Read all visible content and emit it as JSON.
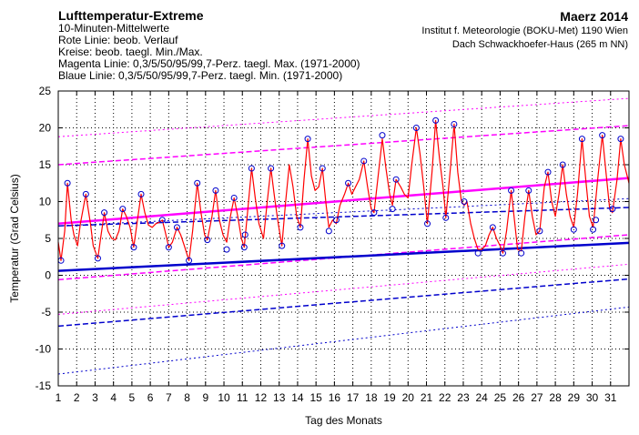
{
  "header": {
    "title": "Lufttemperatur-Extreme",
    "line1": "10-Minuten-Mittelwerte",
    "line2": "Rote Linie: beob. Verlauf",
    "line3": "Kreise: beob. taegl. Min./Max.",
    "line4": "Magenta Linie: 0,3/5/50/95/99,7-Perz. taegl. Max. (1971-2000)",
    "line5": "Blaue Linie: 0,3/5/50/95/99,7-Perz. taegl. Min. (1971-2000)",
    "month": "Maerz 2014",
    "institute": "Institut f. Meteorologie (BOKU-Met) 1190 Wien",
    "station": "Dach Schwackhoefer-Haus (265 m NN)"
  },
  "chart_data": {
    "type": "line",
    "xlabel": "Tag des Monats",
    "ylabel": "Temperatur (Grad Celsius)",
    "xlim": [
      1,
      32
    ],
    "ylim": [
      -15,
      25
    ],
    "xticks": [
      "1",
      "2",
      "3",
      "4",
      "5",
      "6",
      "7",
      "8",
      "9",
      "10",
      "11",
      "12",
      "13",
      "14",
      "15",
      "16",
      "17",
      "18",
      "19",
      "20",
      "21",
      "22",
      "23",
      "24",
      "25",
      "26",
      "27",
      "28",
      "29",
      "30",
      "31"
    ],
    "yticks": [
      25,
      20,
      15,
      10,
      5,
      0,
      -5,
      -10,
      -15
    ],
    "grid": true,
    "colors": {
      "observed": "#ff0000",
      "max_percentiles": "#ff00ff",
      "min_percentiles": "#0000cc",
      "extremes_circles": "#0000cc"
    },
    "observed_series": {
      "name": "",
      "points": [
        [
          1.0,
          4.5
        ],
        [
          1.15,
          2.0
        ],
        [
          1.35,
          6.0
        ],
        [
          1.5,
          12.5
        ],
        [
          1.7,
          7.5
        ],
        [
          1.85,
          5.5
        ],
        [
          2.05,
          4.0
        ],
        [
          2.2,
          7.0
        ],
        [
          2.5,
          11.0
        ],
        [
          2.75,
          7.0
        ],
        [
          2.9,
          4.0
        ],
        [
          3.15,
          2.3
        ],
        [
          3.3,
          5.0
        ],
        [
          3.5,
          8.5
        ],
        [
          3.7,
          6.0
        ],
        [
          3.9,
          5.0
        ],
        [
          4.1,
          4.8
        ],
        [
          4.3,
          6.0
        ],
        [
          4.5,
          9.0
        ],
        [
          4.7,
          8.0
        ],
        [
          4.9,
          6.5
        ],
        [
          5.1,
          3.8
        ],
        [
          5.3,
          7.5
        ],
        [
          5.5,
          11.0
        ],
        [
          5.7,
          8.5
        ],
        [
          5.9,
          6.8
        ],
        [
          6.1,
          6.5
        ],
        [
          6.3,
          7.0
        ],
        [
          6.5,
          7.2
        ],
        [
          6.65,
          7.5
        ],
        [
          6.8,
          6.0
        ],
        [
          7.0,
          3.8
        ],
        [
          7.2,
          4.5
        ],
        [
          7.45,
          6.5
        ],
        [
          7.65,
          5.5
        ],
        [
          7.85,
          4.0
        ],
        [
          8.1,
          2.0
        ],
        [
          8.3,
          6.0
        ],
        [
          8.55,
          12.5
        ],
        [
          8.75,
          8.5
        ],
        [
          8.95,
          5.5
        ],
        [
          9.1,
          4.8
        ],
        [
          9.35,
          8.0
        ],
        [
          9.55,
          11.5
        ],
        [
          9.75,
          7.5
        ],
        [
          9.95,
          5.5
        ],
        [
          10.15,
          4.5
        ],
        [
          10.35,
          8.0
        ],
        [
          10.55,
          10.5
        ],
        [
          10.75,
          8.0
        ],
        [
          10.95,
          5.0
        ],
        [
          11.1,
          3.8
        ],
        [
          11.3,
          9.0
        ],
        [
          11.5,
          14.5
        ],
        [
          11.7,
          10.5
        ],
        [
          11.9,
          7.0
        ],
        [
          12.15,
          5.0
        ],
        [
          12.35,
          10.0
        ],
        [
          12.55,
          14.5
        ],
        [
          12.75,
          10.5
        ],
        [
          12.95,
          7.0
        ],
        [
          13.15,
          4.0
        ],
        [
          13.35,
          10.0
        ],
        [
          13.55,
          15.0
        ],
        [
          13.75,
          12.0
        ],
        [
          13.95,
          8.0
        ],
        [
          14.15,
          6.5
        ],
        [
          14.35,
          13.0
        ],
        [
          14.55,
          18.5
        ],
        [
          14.75,
          13.5
        ],
        [
          14.95,
          11.5
        ],
        [
          15.15,
          12.0
        ],
        [
          15.35,
          14.5
        ],
        [
          15.55,
          9.5
        ],
        [
          15.7,
          6.5
        ],
        [
          15.9,
          7.5
        ],
        [
          16.1,
          7.0
        ],
        [
          16.3,
          9.5
        ],
        [
          16.55,
          11.0
        ],
        [
          16.75,
          12.5
        ],
        [
          16.95,
          11.0
        ],
        [
          17.15,
          12.0
        ],
        [
          17.35,
          13.0
        ],
        [
          17.6,
          15.5
        ],
        [
          17.8,
          12.0
        ],
        [
          18.0,
          9.0
        ],
        [
          18.15,
          8.5
        ],
        [
          18.4,
          14.0
        ],
        [
          18.6,
          18.5
        ],
        [
          18.8,
          14.5
        ],
        [
          19.0,
          11.0
        ],
        [
          19.15,
          9.5
        ],
        [
          19.35,
          13.0
        ],
        [
          19.6,
          12.0
        ],
        [
          19.8,
          11.0
        ],
        [
          20.0,
          10.5
        ],
        [
          20.2,
          15.0
        ],
        [
          20.45,
          20.0
        ],
        [
          20.65,
          16.5
        ],
        [
          20.85,
          12.0
        ],
        [
          21.05,
          7.0
        ],
        [
          21.3,
          14.0
        ],
        [
          21.5,
          21.0
        ],
        [
          21.7,
          16.0
        ],
        [
          21.9,
          12.0
        ],
        [
          22.05,
          7.8
        ],
        [
          22.3,
          14.5
        ],
        [
          22.5,
          20.5
        ],
        [
          22.7,
          14.0
        ],
        [
          22.9,
          10.0
        ],
        [
          23.05,
          9.5
        ],
        [
          23.2,
          10.0
        ],
        [
          23.4,
          7.0
        ],
        [
          23.6,
          5.0
        ],
        [
          23.8,
          3.5
        ],
        [
          24.0,
          3.5
        ],
        [
          24.2,
          4.0
        ],
        [
          24.4,
          5.5
        ],
        [
          24.6,
          6.5
        ],
        [
          24.8,
          5.0
        ],
        [
          25.0,
          4.0
        ],
        [
          25.15,
          3.0
        ],
        [
          25.35,
          6.0
        ],
        [
          25.6,
          11.5
        ],
        [
          25.8,
          7.0
        ],
        [
          25.95,
          3.5
        ],
        [
          26.15,
          3.3
        ],
        [
          26.35,
          8.0
        ],
        [
          26.55,
          11.5
        ],
        [
          26.75,
          8.0
        ],
        [
          26.95,
          5.5
        ],
        [
          27.15,
          6.0
        ],
        [
          27.4,
          12.0
        ],
        [
          27.6,
          14.0
        ],
        [
          27.8,
          10.0
        ],
        [
          28.0,
          8.0
        ],
        [
          28.2,
          11.0
        ],
        [
          28.4,
          15.0
        ],
        [
          28.6,
          11.0
        ],
        [
          28.8,
          8.0
        ],
        [
          29.0,
          6.5
        ],
        [
          29.2,
          11.0
        ],
        [
          29.45,
          18.5
        ],
        [
          29.65,
          13.0
        ],
        [
          29.85,
          8.0
        ],
        [
          30.05,
          6.5
        ],
        [
          30.3,
          13.0
        ],
        [
          30.55,
          19.0
        ],
        [
          30.75,
          14.0
        ],
        [
          30.95,
          9.0
        ],
        [
          31.1,
          8.5
        ],
        [
          31.35,
          13.0
        ],
        [
          31.55,
          18.5
        ],
        [
          31.75,
          15.0
        ],
        [
          31.95,
          13.0
        ],
        [
          32.0,
          12.5
        ]
      ]
    },
    "daily_extremes": [
      [
        1.15,
        2.0
      ],
      [
        1.5,
        12.5
      ],
      [
        2.5,
        11.0
      ],
      [
        3.15,
        2.3
      ],
      [
        3.5,
        8.5
      ],
      [
        4.5,
        9.0
      ],
      [
        5.1,
        3.8
      ],
      [
        5.5,
        11.0
      ],
      [
        6.65,
        7.5
      ],
      [
        7.0,
        3.8
      ],
      [
        7.45,
        6.5
      ],
      [
        8.1,
        2.0
      ],
      [
        8.55,
        12.5
      ],
      [
        9.1,
        4.8
      ],
      [
        9.55,
        11.5
      ],
      [
        10.15,
        3.5
      ],
      [
        10.55,
        10.5
      ],
      [
        11.1,
        3.8
      ],
      [
        11.15,
        5.5
      ],
      [
        11.5,
        14.5
      ],
      [
        12.55,
        14.5
      ],
      [
        13.15,
        4.0
      ],
      [
        14.15,
        6.5
      ],
      [
        14.55,
        18.5
      ],
      [
        15.35,
        14.5
      ],
      [
        15.7,
        6.0
      ],
      [
        16.1,
        7.5
      ],
      [
        16.75,
        12.5
      ],
      [
        17.6,
        15.5
      ],
      [
        18.15,
        8.5
      ],
      [
        18.6,
        19.0
      ],
      [
        19.15,
        9.0
      ],
      [
        19.35,
        13.0
      ],
      [
        20.45,
        20.0
      ],
      [
        21.05,
        7.0
      ],
      [
        21.5,
        21.0
      ],
      [
        22.05,
        7.8
      ],
      [
        22.5,
        20.5
      ],
      [
        23.05,
        10.0
      ],
      [
        23.8,
        3.0
      ],
      [
        24.6,
        6.5
      ],
      [
        25.15,
        3.0
      ],
      [
        25.6,
        11.5
      ],
      [
        26.15,
        3.0
      ],
      [
        26.55,
        11.5
      ],
      [
        27.15,
        6.0
      ],
      [
        27.6,
        14.0
      ],
      [
        28.4,
        15.0
      ],
      [
        29.0,
        6.2
      ],
      [
        29.45,
        18.5
      ],
      [
        30.05,
        6.2
      ],
      [
        30.2,
        7.5
      ],
      [
        30.55,
        19.0
      ],
      [
        31.1,
        9.0
      ],
      [
        31.55,
        18.5
      ]
    ],
    "max_percentiles": [
      {
        "name": "99,7",
        "style": "dotted",
        "width": 1,
        "start": 18.8,
        "end": 24.0
      },
      {
        "name": "95",
        "style": "dashed",
        "width": 1.5,
        "start": 15.0,
        "end": 20.3
      },
      {
        "name": "50",
        "style": "solid",
        "width": 2.5,
        "start": 7.0,
        "end": 13.2
      },
      {
        "name": "5",
        "style": "dashed",
        "width": 1.5,
        "start": -0.6,
        "end": 5.5
      },
      {
        "name": "0,3",
        "style": "dotted",
        "width": 1,
        "start": -5.3,
        "end": 1.5
      }
    ],
    "min_percentiles": [
      {
        "name": "99,7",
        "style": "dotted",
        "width": 1,
        "start": 6.7,
        "end": 10.4
      },
      {
        "name": "95",
        "style": "dashed",
        "width": 1.5,
        "start": 6.7,
        "end": 9.2
      },
      {
        "name": "50",
        "style": "solid",
        "width": 2.5,
        "start": 0.6,
        "end": 4.4
      },
      {
        "name": "5",
        "style": "dashed",
        "width": 1.5,
        "start": -6.9,
        "end": -0.5
      },
      {
        "name": "0,3",
        "style": "dotted",
        "width": 1,
        "start": -13.4,
        "end": -4.3
      }
    ]
  }
}
